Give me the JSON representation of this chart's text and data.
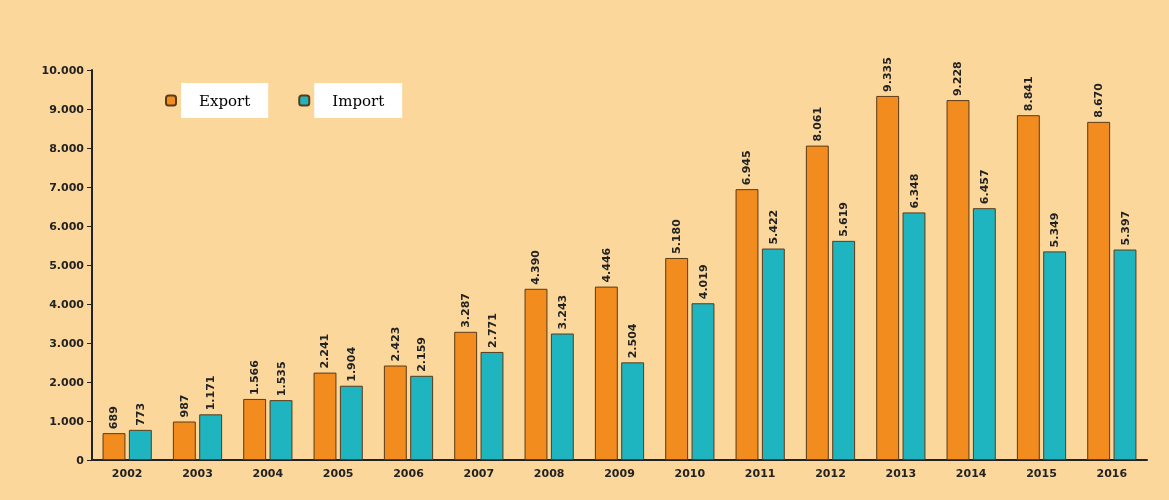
{
  "chart_data": {
    "type": "bar",
    "categories": [
      "2002",
      "2003",
      "2004",
      "2005",
      "2006",
      "2007",
      "2008",
      "2009",
      "2010",
      "2011",
      "2012",
      "2013",
      "2014",
      "2015",
      "2016"
    ],
    "series": [
      {
        "name": "Export",
        "color": "#f28c1e",
        "values": [
          689,
          987,
          1566,
          2241,
          2423,
          3287,
          4390,
          4446,
          5180,
          6945,
          8061,
          9335,
          9228,
          8841,
          8670
        ],
        "value_labels": [
          "689",
          "987",
          "1.566",
          "2.241",
          "2.423",
          "3.287",
          "4.390",
          "4.446",
          "5.180",
          "6.945",
          "8.061",
          "9.335",
          "9.228",
          "8.841",
          "8.670"
        ]
      },
      {
        "name": "Import",
        "color": "#1fb5c0",
        "values": [
          773,
          1171,
          1535,
          1904,
          2159,
          2771,
          3243,
          2504,
          4019,
          5422,
          5619,
          6348,
          6457,
          5349,
          5397
        ],
        "value_labels": [
          "773",
          "1.171",
          "1.535",
          "1.904",
          "2.159",
          "2.771",
          "3.243",
          "2.504",
          "4.019",
          "5.422",
          "5.619",
          "6.348",
          "6.457",
          "5.349",
          "5.397"
        ]
      }
    ],
    "ylim": [
      0,
      10000
    ],
    "yticks": [
      0,
      {
        "value": 1000,
        "label": "1.000"
      },
      {
        "value": 2000,
        "label": "2.000"
      },
      {
        "value": 3000,
        "label": "3.000"
      },
      {
        "value": 4000,
        "label": "4.000"
      },
      {
        "value": 5000,
        "label": "5.000"
      },
      {
        "value": 6000,
        "label": "6.000"
      },
      {
        "value": 7000,
        "label": "7.000"
      },
      {
        "value": 8000,
        "label": "8.000"
      },
      {
        "value": 9000,
        "label": "9.000"
      },
      {
        "value": 10000,
        "label": "10.000"
      }
    ],
    "grid": false,
    "legend": "top left"
  }
}
